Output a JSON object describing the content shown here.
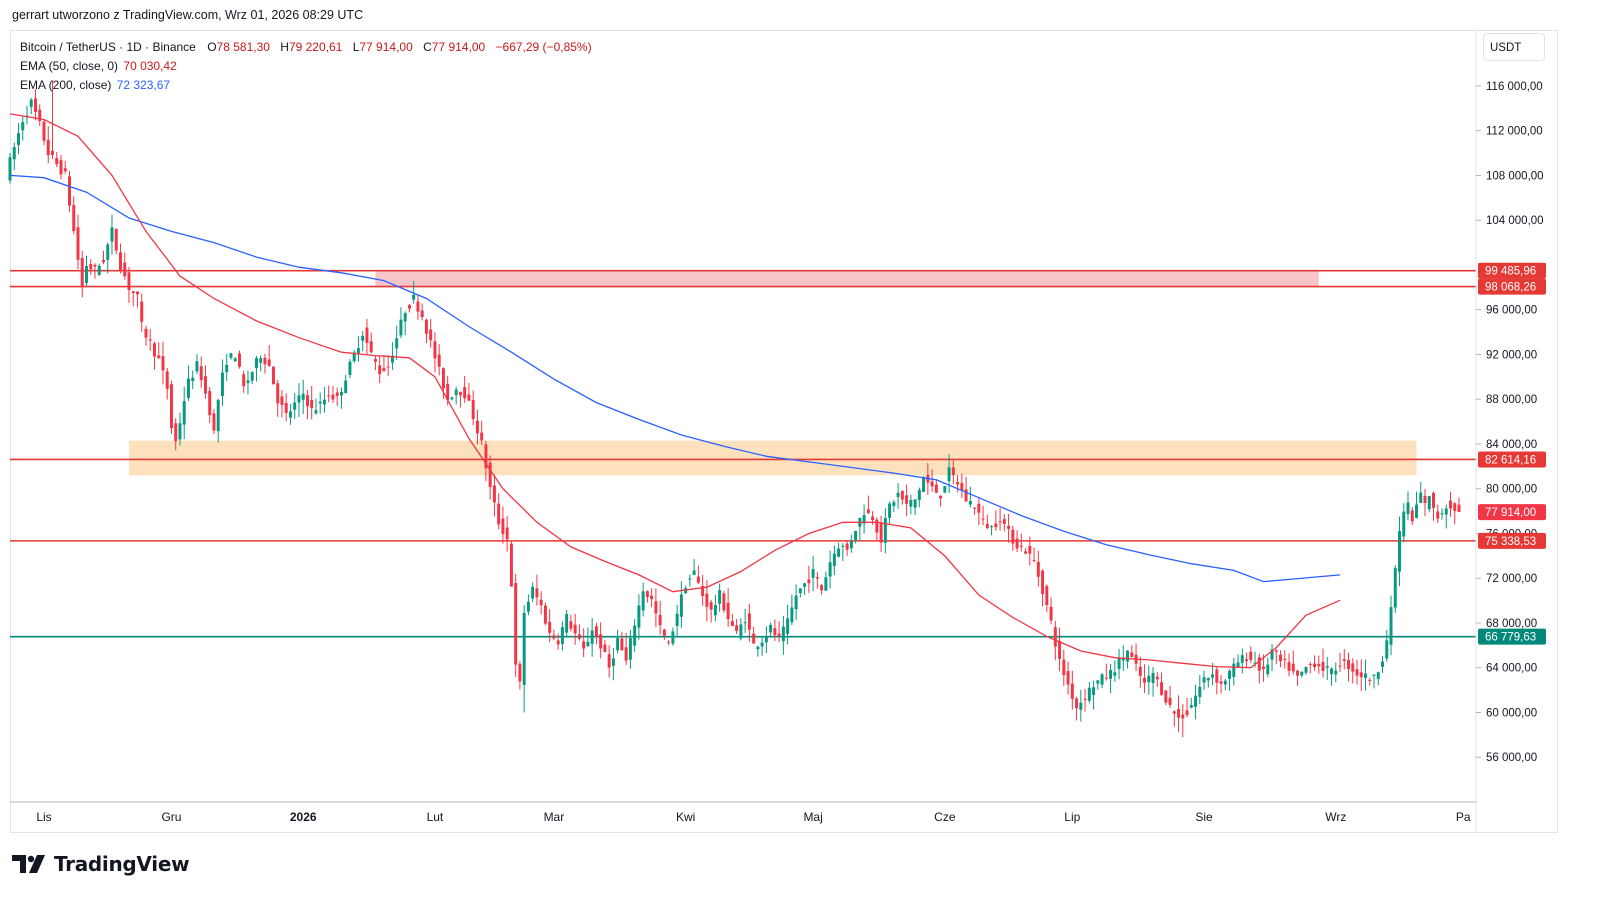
{
  "header": {
    "caption": "gerrart utworzono z TradingView.com, Wrz 01, 2026 08:29 UTC"
  },
  "legend": {
    "symbol": "Bitcoin / TetherUS · 1D · Binance",
    "open_k": "O",
    "open": "78 581,30",
    "high_k": "H",
    "high": "79 220,61",
    "low_k": "L",
    "low": "77 914,00",
    "close_k": "C",
    "close": "77 914,00",
    "change": "−667,29 (−0,85%)",
    "ema50_label": "EMA (50, close, 0)",
    "ema50_value": "70 030,42",
    "ema200_label": "EMA (200, close)",
    "ema200_value": "72 323,67"
  },
  "currency": "USDT",
  "brand": {
    "name": "TradingView"
  },
  "colors": {
    "up": "#089981",
    "down": "#f23645",
    "ema50": "#f23645",
    "ema200": "#2962ff",
    "level_red": "#e53935",
    "level_green": "#00897b",
    "zone_pink": "#f8c5cb",
    "zone_orange": "#fde1bd"
  },
  "chart_data": {
    "type": "candlestick",
    "ylim": [
      52000,
      121000
    ],
    "y_ticks": [
      {
        "value": 56000,
        "label": "56 000,00"
      },
      {
        "value": 60000,
        "label": "60 000,00"
      },
      {
        "value": 64000,
        "label": "64 000,00"
      },
      {
        "value": 68000,
        "label": "68 000,00"
      },
      {
        "value": 72000,
        "label": "72 000,00"
      },
      {
        "value": 76000,
        "label": "76 000,00"
      },
      {
        "value": 80000,
        "label": "80 000,00"
      },
      {
        "value": 84000,
        "label": "84 000,00"
      },
      {
        "value": 88000,
        "label": "88 000,00"
      },
      {
        "value": 92000,
        "label": "92 000,00"
      },
      {
        "value": 96000,
        "label": "96 000,00"
      },
      {
        "value": 104000,
        "label": "104 000,00"
      },
      {
        "value": 108000,
        "label": "108 000,00"
      },
      {
        "value": 112000,
        "label": "112 000,00"
      },
      {
        "value": 116000,
        "label": "116 000,00"
      }
    ],
    "x_ticks": [
      {
        "day": 0,
        "label": "Lis"
      },
      {
        "day": 30,
        "label": "Gru"
      },
      {
        "day": 61,
        "label": "2026"
      },
      {
        "day": 92,
        "label": "Lut"
      },
      {
        "day": 120,
        "label": "Mar"
      },
      {
        "day": 151,
        "label": "Kwi"
      },
      {
        "day": 181,
        "label": "Maj"
      },
      {
        "day": 212,
        "label": "Cze"
      },
      {
        "day": 242,
        "label": "Lip"
      },
      {
        "day": 273,
        "label": "Sie"
      },
      {
        "day": 304,
        "label": "Wrz"
      },
      {
        "day": 334,
        "label": "Pa"
      }
    ],
    "xlim_days": [
      -8,
      337
    ],
    "levels": [
      {
        "price": 99485.96,
        "label": "99 485,96",
        "color": "#e53935"
      },
      {
        "price": 98068.26,
        "label": "98 068,26",
        "color": "#e53935"
      },
      {
        "price": 82614.16,
        "label": "82 614,16",
        "color": "#e53935"
      },
      {
        "price": 77914.0,
        "label": "77 914,00",
        "color": "#f23645",
        "current": true
      },
      {
        "price": 75338.53,
        "label": "75 338,53",
        "color": "#e53935"
      },
      {
        "price": 66779.63,
        "label": "66 779,63",
        "color": "#00897b"
      }
    ],
    "zones": [
      {
        "name": "resistance-zone-pink",
        "from_day": 78,
        "to_day": 300,
        "low": 98068.26,
        "high": 99485.96,
        "color": "#f8c5cb"
      },
      {
        "name": "resistance-zone-orange",
        "from_day": 20,
        "to_day": 323,
        "low": 81200,
        "high": 84300,
        "color": "#fde1bd"
      }
    ],
    "ema200_points": [
      [
        -8,
        108000
      ],
      [
        0,
        107800
      ],
      [
        10,
        106500
      ],
      [
        20,
        104200
      ],
      [
        30,
        103000
      ],
      [
        40,
        102000
      ],
      [
        50,
        100700
      ],
      [
        60,
        99800
      ],
      [
        70,
        99300
      ],
      [
        80,
        98600
      ],
      [
        90,
        97000
      ],
      [
        100,
        94500
      ],
      [
        110,
        92200
      ],
      [
        120,
        89800
      ],
      [
        130,
        87700
      ],
      [
        140,
        86200
      ],
      [
        150,
        84800
      ],
      [
        160,
        83800
      ],
      [
        170,
        82900
      ],
      [
        180,
        82400
      ],
      [
        190,
        81900
      ],
      [
        200,
        81400
      ],
      [
        210,
        80800
      ],
      [
        220,
        79200
      ],
      [
        230,
        77600
      ],
      [
        240,
        76200
      ],
      [
        250,
        75000
      ],
      [
        260,
        74100
      ],
      [
        270,
        73300
      ],
      [
        280,
        72700
      ],
      [
        287,
        71700
      ],
      [
        293,
        71900
      ],
      [
        305,
        72300
      ]
    ],
    "ema50_points": [
      [
        -8,
        113500
      ],
      [
        0,
        113000
      ],
      [
        8,
        111500
      ],
      [
        16,
        108000
      ],
      [
        24,
        103000
      ],
      [
        32,
        99000
      ],
      [
        40,
        97000
      ],
      [
        50,
        95000
      ],
      [
        60,
        93500
      ],
      [
        70,
        92200
      ],
      [
        78,
        91900
      ],
      [
        86,
        91700
      ],
      [
        92,
        90000
      ],
      [
        100,
        84500
      ],
      [
        108,
        80000
      ],
      [
        116,
        77000
      ],
      [
        124,
        74800
      ],
      [
        132,
        73500
      ],
      [
        140,
        72300
      ],
      [
        148,
        70800
      ],
      [
        156,
        71200
      ],
      [
        164,
        72600
      ],
      [
        172,
        74500
      ],
      [
        180,
        76000
      ],
      [
        188,
        77000
      ],
      [
        196,
        77000
      ],
      [
        204,
        76500
      ],
      [
        212,
        74000
      ],
      [
        220,
        70500
      ],
      [
        228,
        68500
      ],
      [
        236,
        66800
      ],
      [
        244,
        65500
      ],
      [
        252,
        64900
      ],
      [
        260,
        64700
      ],
      [
        268,
        64400
      ],
      [
        276,
        64100
      ],
      [
        284,
        64000
      ],
      [
        290,
        65800
      ],
      [
        297,
        68700
      ],
      [
        305,
        70030
      ]
    ],
    "candle_path": [
      [
        -8,
        108000
      ],
      [
        -4,
        113000
      ],
      [
        -2,
        114500
      ],
      [
        0,
        112500
      ],
      [
        2,
        110000
      ],
      [
        4,
        109000
      ],
      [
        6,
        108000
      ],
      [
        8,
        103000
      ],
      [
        10,
        98000
      ],
      [
        11,
        100000
      ],
      [
        13,
        99500
      ],
      [
        15,
        100500
      ],
      [
        17,
        103000
      ],
      [
        19,
        100000
      ],
      [
        21,
        98000
      ],
      [
        23,
        97000
      ],
      [
        24,
        94500
      ],
      [
        26,
        93000
      ],
      [
        28,
        91500
      ],
      [
        30,
        89000
      ],
      [
        31,
        85500
      ],
      [
        32,
        84200
      ],
      [
        33,
        86000
      ],
      [
        34,
        88000
      ],
      [
        35,
        89500
      ],
      [
        37,
        91000
      ],
      [
        38,
        90000
      ],
      [
        39,
        88500
      ],
      [
        40,
        87000
      ],
      [
        41,
        85000
      ],
      [
        42,
        88000
      ],
      [
        43,
        90000
      ],
      [
        44,
        91500
      ],
      [
        46,
        92000
      ],
      [
        48,
        89000
      ],
      [
        50,
        90500
      ],
      [
        52,
        92000
      ],
      [
        54,
        91000
      ],
      [
        55,
        89500
      ],
      [
        56,
        88000
      ],
      [
        58,
        86500
      ],
      [
        60,
        87500
      ],
      [
        62,
        88500
      ],
      [
        64,
        87000
      ],
      [
        66,
        87500
      ],
      [
        68,
        88500
      ],
      [
        70,
        88000
      ],
      [
        72,
        90000
      ],
      [
        74,
        92000
      ],
      [
        76,
        94000
      ],
      [
        78,
        92000
      ],
      [
        80,
        90500
      ],
      [
        82,
        91000
      ],
      [
        84,
        93500
      ],
      [
        86,
        96000
      ],
      [
        88,
        97000
      ],
      [
        90,
        95500
      ],
      [
        92,
        93000
      ],
      [
        94,
        90500
      ],
      [
        96,
        88000
      ],
      [
        98,
        89000
      ],
      [
        100,
        88500
      ],
      [
        102,
        86500
      ],
      [
        104,
        84000
      ],
      [
        106,
        80000
      ],
      [
        108,
        77000
      ],
      [
        110,
        75500
      ],
      [
        111,
        71500
      ],
      [
        112,
        64000
      ],
      [
        113,
        62500
      ],
      [
        114,
        69000
      ],
      [
        116,
        71000
      ],
      [
        118,
        69500
      ],
      [
        120,
        67000
      ],
      [
        122,
        66500
      ],
      [
        124,
        68500
      ],
      [
        126,
        67000
      ],
      [
        128,
        65500
      ],
      [
        130,
        67500
      ],
      [
        132,
        66000
      ],
      [
        134,
        64000
      ],
      [
        136,
        66500
      ],
      [
        138,
        64500
      ],
      [
        140,
        68000
      ],
      [
        142,
        71000
      ],
      [
        144,
        70000
      ],
      [
        146,
        67500
      ],
      [
        148,
        66000
      ],
      [
        150,
        69000
      ],
      [
        152,
        71500
      ],
      [
        154,
        72500
      ],
      [
        156,
        70500
      ],
      [
        158,
        69000
      ],
      [
        160,
        70500
      ],
      [
        162,
        68500
      ],
      [
        164,
        67000
      ],
      [
        166,
        68500
      ],
      [
        168,
        66000
      ],
      [
        170,
        66500
      ],
      [
        172,
        67500
      ],
      [
        174,
        66500
      ],
      [
        176,
        68000
      ],
      [
        178,
        70500
      ],
      [
        180,
        71500
      ],
      [
        182,
        72500
      ],
      [
        184,
        71000
      ],
      [
        186,
        73500
      ],
      [
        188,
        75000
      ],
      [
        190,
        74500
      ],
      [
        192,
        76500
      ],
      [
        194,
        78000
      ],
      [
        196,
        77500
      ],
      [
        198,
        75500
      ],
      [
        200,
        78500
      ],
      [
        202,
        79500
      ],
      [
        204,
        78500
      ],
      [
        206,
        79000
      ],
      [
        208,
        81000
      ],
      [
        210,
        80000
      ],
      [
        212,
        79500
      ],
      [
        214,
        81500
      ],
      [
        216,
        80500
      ],
      [
        218,
        79000
      ],
      [
        220,
        78500
      ],
      [
        222,
        77000
      ],
      [
        224,
        76500
      ],
      [
        226,
        77500
      ],
      [
        228,
        76000
      ],
      [
        230,
        75000
      ],
      [
        232,
        74500
      ],
      [
        234,
        73500
      ],
      [
        236,
        71000
      ],
      [
        238,
        68000
      ],
      [
        240,
        64500
      ],
      [
        242,
        62500
      ],
      [
        244,
        60500
      ],
      [
        246,
        61500
      ],
      [
        248,
        62500
      ],
      [
        250,
        63000
      ],
      [
        252,
        63500
      ],
      [
        254,
        64500
      ],
      [
        256,
        65500
      ],
      [
        258,
        64000
      ],
      [
        260,
        62500
      ],
      [
        262,
        63500
      ],
      [
        264,
        62000
      ],
      [
        266,
        60500
      ],
      [
        268,
        59500
      ],
      [
        270,
        60000
      ],
      [
        272,
        61500
      ],
      [
        274,
        63000
      ],
      [
        276,
        63500
      ],
      [
        278,
        62500
      ],
      [
        280,
        63500
      ],
      [
        282,
        64500
      ],
      [
        284,
        65000
      ],
      [
        286,
        64500
      ],
      [
        288,
        63500
      ],
      [
        290,
        65500
      ],
      [
        292,
        64500
      ],
      [
        294,
        64000
      ],
      [
        296,
        63000
      ],
      [
        298,
        64000
      ],
      [
        300,
        64500
      ],
      [
        302,
        64000
      ],
      [
        304,
        63500
      ],
      [
        306,
        64500
      ],
      [
        308,
        64200
      ],
      [
        310,
        63500
      ],
      [
        312,
        63200
      ],
      [
        314,
        63000
      ],
      [
        315,
        64000
      ],
      [
        316,
        65000
      ],
      [
        317,
        66500
      ],
      [
        318,
        69000
      ],
      [
        319,
        73000
      ],
      [
        320,
        76000
      ],
      [
        321,
        78000
      ],
      [
        322,
        78500
      ],
      [
        323,
        77000
      ],
      [
        324,
        78500
      ],
      [
        325,
        79500
      ],
      [
        326,
        78500
      ],
      [
        327,
        79500
      ],
      [
        328,
        78000
      ],
      [
        329,
        77500
      ],
      [
        330,
        78000
      ],
      [
        331,
        78500
      ],
      [
        332,
        78580
      ],
      [
        333,
        77914
      ]
    ],
    "notable_wicks": [
      {
        "day": 113,
        "low": 60000
      },
      {
        "day": 244,
        "low": 59200
      },
      {
        "day": 268,
        "low": 57800
      },
      {
        "day": 2,
        "high": 116500
      }
    ]
  }
}
